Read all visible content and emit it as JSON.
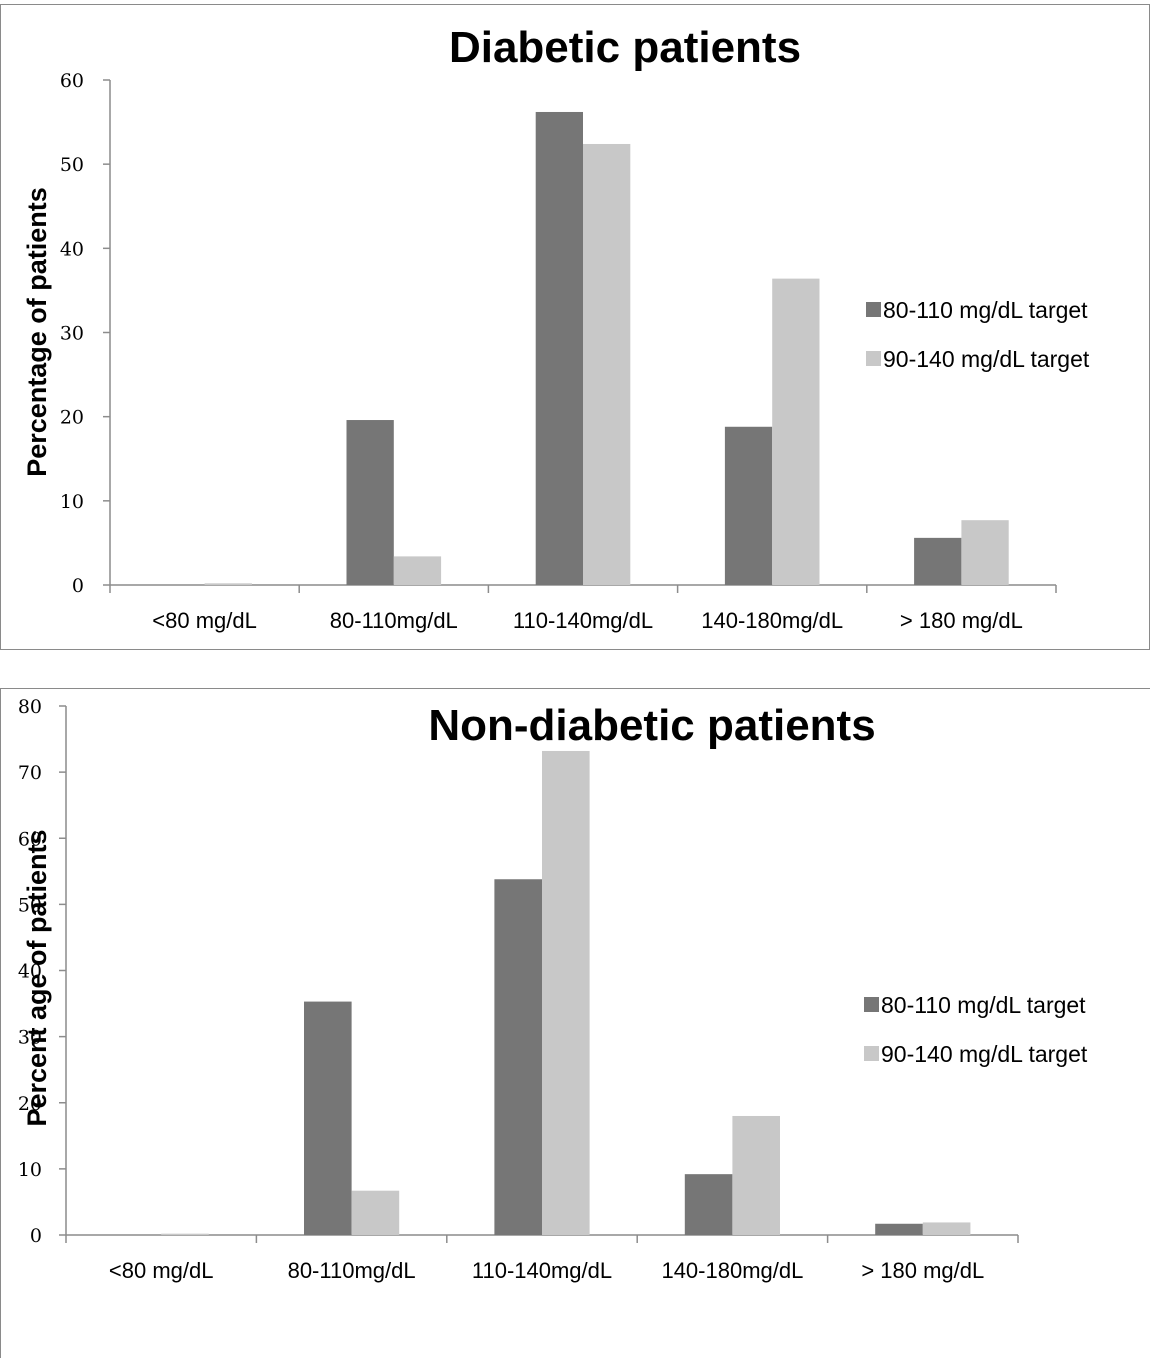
{
  "chart_data": [
    {
      "type": "bar",
      "title": "Diabetic patients",
      "ylabel": "Percentage of patients",
      "xlabel": "",
      "categories": [
        "<80 mg/dL",
        "80-110mg/dL",
        "110-140mg/dL",
        "140-180mg/dL",
        "> 180 mg/dL"
      ],
      "series": [
        {
          "name": "80-110 mg/dL target",
          "color": "#767676",
          "values": [
            0,
            19.6,
            56.2,
            18.8,
            5.6
          ]
        },
        {
          "name": "90-140 mg/dL target",
          "color": "#c8c8c8",
          "values": [
            0.2,
            3.4,
            52.4,
            36.4,
            7.7
          ]
        }
      ],
      "ylim": [
        0,
        60
      ],
      "yticks": [
        "0",
        "10",
        "20",
        "30",
        "40",
        "50",
        "60"
      ],
      "legend": "right",
      "grid": false
    },
    {
      "type": "bar",
      "title": "Non-diabetic patients",
      "ylabel": "Percent age of patients",
      "xlabel": "",
      "categories": [
        "<80 mg/dL",
        "80-110mg/dL",
        "110-140mg/dL",
        "140-180mg/dL",
        "> 180 mg/dL"
      ],
      "series": [
        {
          "name": "80-110 mg/dL target",
          "color": "#767676",
          "values": [
            0,
            35.3,
            53.8,
            9.2,
            1.7
          ]
        },
        {
          "name": "90-140 mg/dL target",
          "color": "#c8c8c8",
          "values": [
            0.2,
            6.7,
            73.2,
            18.0,
            1.9
          ]
        }
      ],
      "ylim": [
        0,
        80
      ],
      "yticks": [
        "0",
        "10",
        "20",
        "30",
        "40",
        "50",
        "60",
        "70",
        "80"
      ],
      "legend": "right",
      "grid": false
    }
  ]
}
